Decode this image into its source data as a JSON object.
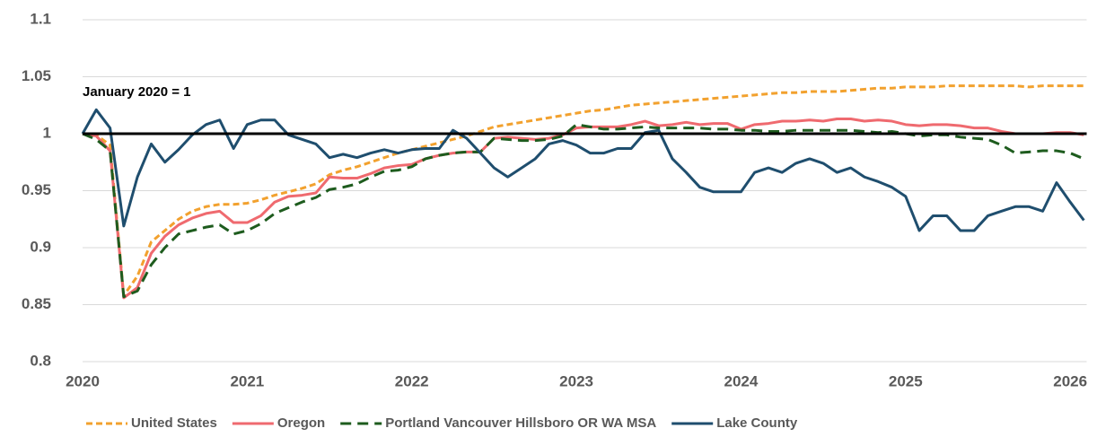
{
  "chart_data": {
    "type": "line",
    "annotation": "January 2020 = 1",
    "reference_line": 1,
    "x": [
      2020,
      2020.083,
      2020.167,
      2020.25,
      2020.333,
      2020.417,
      2020.5,
      2020.583,
      2020.667,
      2020.75,
      2020.833,
      2020.917,
      2021,
      2021.083,
      2021.167,
      2021.25,
      2021.333,
      2021.417,
      2021.5,
      2021.583,
      2021.667,
      2021.75,
      2021.833,
      2021.917,
      2022,
      2022.083,
      2022.167,
      2022.25,
      2022.333,
      2022.417,
      2022.5,
      2022.583,
      2022.667,
      2022.75,
      2022.833,
      2022.917,
      2023,
      2023.083,
      2023.167,
      2023.25,
      2023.333,
      2023.417,
      2023.5,
      2023.583,
      2023.667,
      2023.75,
      2023.833,
      2023.917,
      2024,
      2024.083,
      2024.167,
      2024.25,
      2024.333,
      2024.417,
      2024.5,
      2024.583,
      2024.667,
      2024.75,
      2024.833,
      2024.917,
      2025,
      2025.083,
      2025.167,
      2025.25,
      2025.333,
      2025.417,
      2025.5,
      2025.583,
      2025.667,
      2025.75,
      2025.833,
      2025.917,
      2026,
      2026.083
    ],
    "series": [
      {
        "name": "United States",
        "color": "#f2a12e",
        "line_style": "dotted",
        "values": [
          1.0,
          0.999,
          0.99,
          0.858,
          0.875,
          0.905,
          0.915,
          0.925,
          0.932,
          0.936,
          0.938,
          0.938,
          0.939,
          0.942,
          0.946,
          0.949,
          0.952,
          0.956,
          0.964,
          0.968,
          0.971,
          0.975,
          0.979,
          0.983,
          0.986,
          0.989,
          0.992,
          0.995,
          0.998,
          1.002,
          1.006,
          1.008,
          1.01,
          1.012,
          1.014,
          1.016,
          1.018,
          1.02,
          1.021,
          1.023,
          1.025,
          1.026,
          1.027,
          1.028,
          1.029,
          1.03,
          1.031,
          1.032,
          1.033,
          1.034,
          1.035,
          1.036,
          1.036,
          1.037,
          1.037,
          1.037,
          1.038,
          1.039,
          1.04,
          1.04,
          1.041,
          1.041,
          1.041,
          1.042,
          1.042,
          1.042,
          1.042,
          1.042,
          1.042,
          1.041,
          1.042,
          1.042,
          1.042,
          1.042
        ]
      },
      {
        "name": "Oregon",
        "color": "#ef6a6f",
        "line_style": "solid",
        "values": [
          1.0,
          0.998,
          0.985,
          0.856,
          0.865,
          0.895,
          0.91,
          0.92,
          0.926,
          0.93,
          0.932,
          0.922,
          0.922,
          0.928,
          0.94,
          0.945,
          0.946,
          0.948,
          0.962,
          0.961,
          0.961,
          0.965,
          0.97,
          0.972,
          0.973,
          0.978,
          0.981,
          0.983,
          0.984,
          0.984,
          0.996,
          0.997,
          0.996,
          0.995,
          0.996,
          0.999,
          1.005,
          1.006,
          1.006,
          1.006,
          1.008,
          1.011,
          1.007,
          1.008,
          1.01,
          1.008,
          1.009,
          1.009,
          1.004,
          1.008,
          1.009,
          1.011,
          1.011,
          1.012,
          1.011,
          1.013,
          1.013,
          1.011,
          1.012,
          1.011,
          1.008,
          1.007,
          1.008,
          1.008,
          1.007,
          1.005,
          1.005,
          1.002,
          1.0,
          1.0,
          1.0,
          1.001,
          1.001,
          0.999
        ]
      },
      {
        "name": "Portland Vancouver Hillsboro OR WA MSA",
        "color": "#1e5c1e",
        "line_style": "dashed",
        "values": [
          1.0,
          0.995,
          0.985,
          0.857,
          0.862,
          0.885,
          0.9,
          0.912,
          0.915,
          0.918,
          0.92,
          0.912,
          0.915,
          0.921,
          0.93,
          0.935,
          0.94,
          0.944,
          0.951,
          0.953,
          0.956,
          0.962,
          0.967,
          0.968,
          0.971,
          0.978,
          0.981,
          0.983,
          0.984,
          0.984,
          0.996,
          0.995,
          0.994,
          0.994,
          0.995,
          0.998,
          1.008,
          1.006,
          1.004,
          1.004,
          1.005,
          1.006,
          1.005,
          1.005,
          1.005,
          1.005,
          1.004,
          1.004,
          1.003,
          1.003,
          1.002,
          1.002,
          1.003,
          1.003,
          1.003,
          1.003,
          1.003,
          1.002,
          1.001,
          1.002,
          1.0,
          0.998,
          0.999,
          0.999,
          0.997,
          0.996,
          0.995,
          0.99,
          0.983,
          0.984,
          0.985,
          0.985,
          0.983,
          0.978
        ]
      },
      {
        "name": "Lake County",
        "color": "#1f4e6e",
        "line_style": "solid",
        "values": [
          1.0,
          1.021,
          1.005,
          0.919,
          0.962,
          0.991,
          0.975,
          0.986,
          0.999,
          1.008,
          1.012,
          0.987,
          1.008,
          1.012,
          1.012,
          0.999,
          0.995,
          0.991,
          0.979,
          0.982,
          0.979,
          0.983,
          0.986,
          0.983,
          0.986,
          0.987,
          0.987,
          1.003,
          0.996,
          0.983,
          0.97,
          0.962,
          0.97,
          0.978,
          0.991,
          0.994,
          0.99,
          0.983,
          0.983,
          0.987,
          0.987,
          1.001,
          1.003,
          0.978,
          0.966,
          0.953,
          0.949,
          0.949,
          0.949,
          0.966,
          0.97,
          0.966,
          0.974,
          0.978,
          0.974,
          0.966,
          0.97,
          0.962,
          0.958,
          0.953,
          0.945,
          0.915,
          0.928,
          0.928,
          0.915,
          0.915,
          0.928,
          0.932,
          0.936,
          0.936,
          0.932,
          0.957,
          0.94,
          0.924
        ]
      }
    ],
    "xlim": [
      2020,
      2026.1
    ],
    "xticks": [
      2020,
      2021,
      2022,
      2023,
      2024,
      2025,
      2026
    ],
    "ylim": [
      0.8,
      1.1
    ],
    "yticks": [
      1.1,
      1.05,
      1,
      0.95,
      0.9,
      0.85,
      0.8
    ],
    "grid": true,
    "legend": "bottom"
  }
}
